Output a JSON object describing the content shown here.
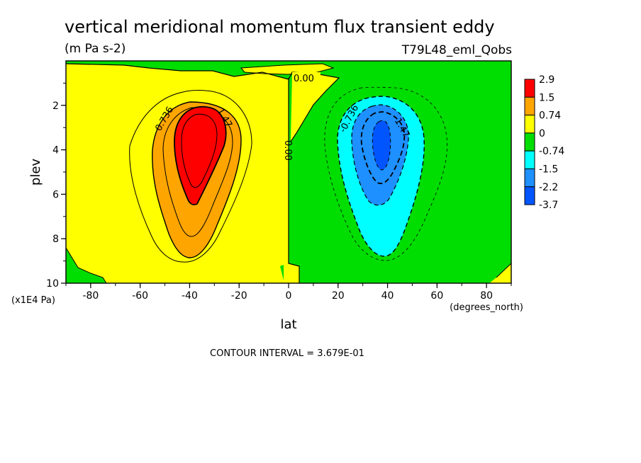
{
  "chart_data": {
    "type": "heatmap",
    "title": "vertical meridional momentum flux transient eddy",
    "units": "(m Pa s-2)",
    "run_label": "T79L48_eml_Qobs",
    "xlabel": "lat",
    "x_units": "(degrees_north)",
    "ylabel": "plev",
    "y_units": "(x1E4 Pa)",
    "xlim": [
      -90,
      90
    ],
    "ylim": [
      0,
      10
    ],
    "y_inverted": true,
    "x_ticks": [
      "-80",
      "-60",
      "-40",
      "-20",
      "0",
      "20",
      "40",
      "60",
      "80"
    ],
    "y_ticks": [
      "2",
      "4",
      "6",
      "8",
      "10"
    ],
    "legend": {
      "placement": "right",
      "levels": [
        "2.9",
        "1.5",
        "0.74",
        "0",
        "-0.74",
        "-1.5",
        "-2.2",
        "-3.7"
      ],
      "colors": [
        "#ff0000",
        "#ffa500",
        "#ffff00",
        "#00dd00",
        "#00ffff",
        "#1e90ff",
        "#0055ff",
        "#0055ff"
      ]
    },
    "features": [
      {
        "name": "southern hemisphere maximum",
        "lat": -37,
        "plev": 4,
        "sign": "positive"
      },
      {
        "name": "northern hemisphere minimum",
        "lat": 37,
        "plev": 4,
        "sign": "negative"
      }
    ],
    "contour_labels": [
      "0.736",
      "1.47",
      "-0.736",
      "-1.47",
      "0.00",
      "0.00"
    ],
    "contour_interval_text": "CONTOUR INTERVAL = 3.679E-01"
  }
}
